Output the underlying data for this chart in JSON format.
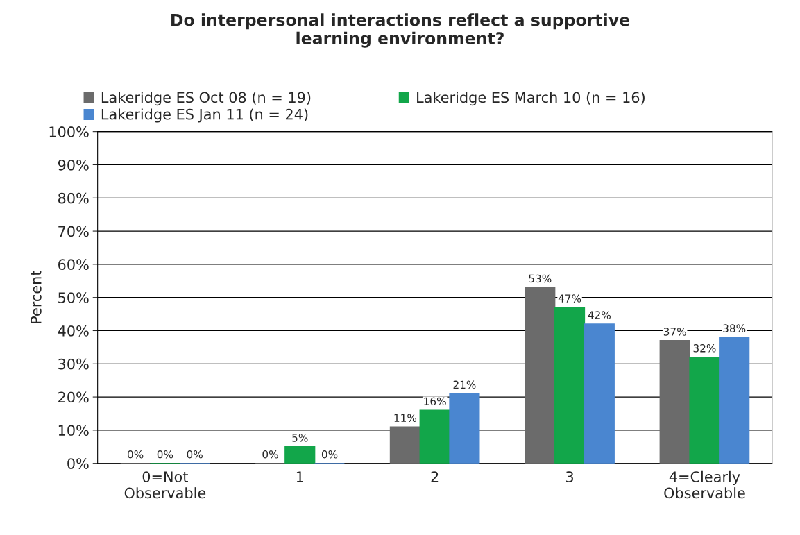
{
  "chart_data": {
    "type": "bar",
    "title": "Do interpersonal interactions reflect a supportive\nlearning environment?",
    "ylabel": "Percent",
    "categories": [
      "0=Not\nObservable",
      "1",
      "2",
      "3",
      "4=Clearly\nObservable"
    ],
    "series": [
      {
        "name": "Lakeridge ES Oct 08 (n = 19)",
        "color": "#6b6b6b",
        "values": [
          0,
          0,
          11,
          53,
          37
        ],
        "value_labels": [
          "0%",
          "0%",
          "11%",
          "53%",
          "37%"
        ]
      },
      {
        "name": "Lakeridge ES March 10 (n = 16)",
        "color": "#12a64a",
        "values": [
          0,
          5,
          16,
          47,
          32
        ],
        "value_labels": [
          "0%",
          "5%",
          "16%",
          "47%",
          "32%"
        ]
      },
      {
        "name": "Lakeridge ES Jan 11 (n = 24)",
        "color": "#4a86d0",
        "values": [
          0,
          0,
          21,
          42,
          38
        ],
        "value_labels": [
          "0%",
          "0%",
          "21%",
          "42%",
          "38%"
        ]
      }
    ],
    "ylim": [
      0,
      100
    ],
    "yticks": [
      {
        "value": 0,
        "label": "0%"
      },
      {
        "value": 10,
        "label": "10%"
      },
      {
        "value": 20,
        "label": "20%"
      },
      {
        "value": 30,
        "label": "30%"
      },
      {
        "value": 40,
        "label": "40%"
      },
      {
        "value": 50,
        "label": "50%"
      },
      {
        "value": 60,
        "label": "60%"
      },
      {
        "value": 70,
        "label": "70%"
      },
      {
        "value": 80,
        "label": "80%"
      },
      {
        "value": 90,
        "label": "90%"
      },
      {
        "value": 100,
        "label": "100%"
      }
    ],
    "grid": "y",
    "legend": "top"
  }
}
